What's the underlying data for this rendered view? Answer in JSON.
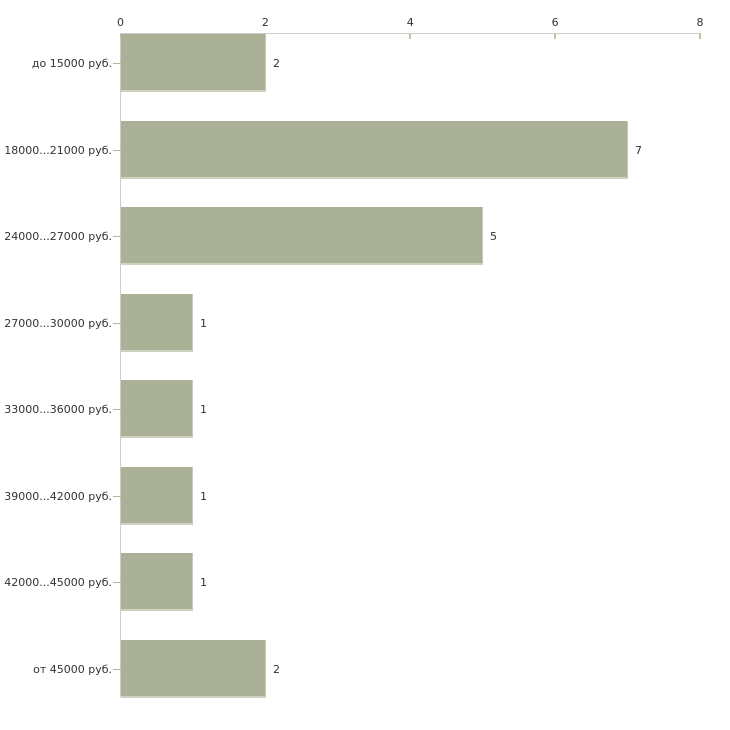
{
  "chart_data": {
    "type": "bar",
    "orientation": "horizontal",
    "title": "",
    "xlabel": "",
    "ylabel": "",
    "categories": [
      "до 15000 руб.",
      "18000...21000 руб.",
      "24000...27000 руб.",
      "27000...30000 руб.",
      "33000...36000 руб.",
      "39000...42000 руб.",
      "42000...45000 руб.",
      "от 45000 руб."
    ],
    "values": [
      2,
      7,
      5,
      1,
      1,
      1,
      1,
      2
    ],
    "value_labels": [
      "2",
      "7",
      "5",
      "1",
      "1",
      "1",
      "1",
      "2"
    ],
    "x_ticks": [
      0,
      2,
      4,
      6,
      8
    ],
    "xlim": [
      0,
      8
    ],
    "grid": false,
    "legend_position": "none",
    "colors": {
      "bar_fill": "#abb197",
      "bar_edge_right": "#c6cab4",
      "bar_edge_bottom": "#ced2c0",
      "axis_line": "#cccccc",
      "x_tick_mark": "#c1c49f",
      "y_tick_mark": "#b6b99c",
      "text": "#333333",
      "background": "#ffffff"
    }
  }
}
